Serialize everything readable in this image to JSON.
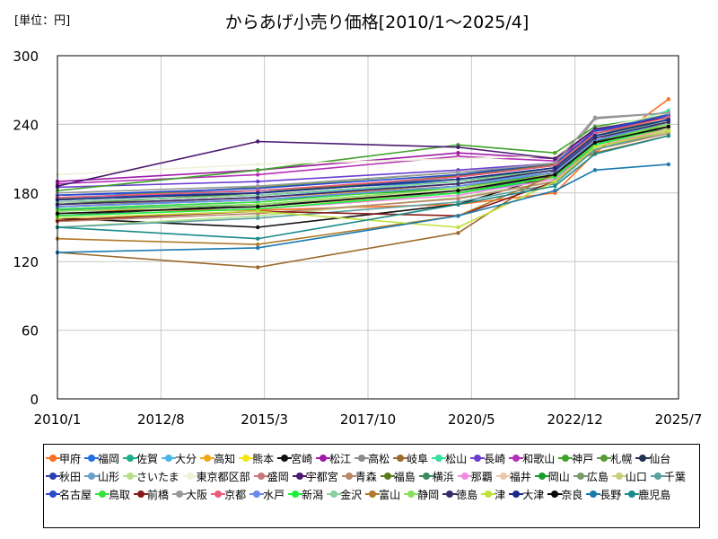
{
  "unit_label": "[単位：円]",
  "chart_data": {
    "type": "line",
    "title": "からあげ小売り価格[2010/1～2025/4]",
    "xlabel": "",
    "ylabel": "",
    "ylim": [
      0,
      300
    ],
    "yticks": [
      0,
      60,
      120,
      180,
      240,
      300
    ],
    "xlim": [
      "2010-01",
      "2025-07"
    ],
    "xticks": [
      "2010/1",
      "2012/8",
      "2015/3",
      "2017/10",
      "2020/5",
      "2022/12",
      "2025/7"
    ],
    "grid": true,
    "legend_position": "bottom",
    "series": [
      {
        "name": "甲府",
        "color": "#ff6d1f",
        "x": [
          "2010-01",
          "2015-01",
          "2020-01",
          "2022-06",
          "2023-06",
          "2025-04"
        ],
        "y": [
          165,
          165,
          170,
          180,
          215,
          262
        ]
      },
      {
        "name": "福岡",
        "color": "#1e6ee6",
        "x": [
          "2010-01",
          "2015-01",
          "2020-01",
          "2022-06",
          "2023-06",
          "2025-04"
        ],
        "y": [
          178,
          182,
          190,
          200,
          225,
          250
        ]
      },
      {
        "name": "佐賀",
        "color": "#1fae8c",
        "x": [
          "2010-01",
          "2015-01",
          "2020-01",
          "2022-06",
          "2023-06",
          "2025-04"
        ],
        "y": [
          165,
          170,
          180,
          192,
          222,
          245
        ]
      },
      {
        "name": "大分",
        "color": "#49b6ea",
        "x": [
          "2010-01",
          "2015-01",
          "2020-01",
          "2022-06",
          "2023-06",
          "2025-04"
        ],
        "y": [
          172,
          178,
          188,
          198,
          228,
          248
        ]
      },
      {
        "name": "高知",
        "color": "#f0a81a",
        "x": [
          "2010-01",
          "2015-01",
          "2020-01",
          "2022-06",
          "2023-06",
          "2025-04"
        ],
        "y": [
          170,
          176,
          186,
          196,
          226,
          242
        ]
      },
      {
        "name": "熊本",
        "color": "#f3e614",
        "x": [
          "2010-01",
          "2015-01",
          "2020-01",
          "2022-06",
          "2023-06",
          "2025-04"
        ],
        "y": [
          162,
          168,
          182,
          194,
          224,
          240
        ]
      },
      {
        "name": "宮崎",
        "color": "#111111",
        "x": [
          "2010-01",
          "2015-01",
          "2020-01",
          "2022-06",
          "2023-06",
          "2025-04"
        ],
        "y": [
          158,
          150,
          170,
          196,
          225,
          236
        ]
      },
      {
        "name": "松江",
        "color": "#a01aa6",
        "x": [
          "2010-01",
          "2015-01",
          "2020-01",
          "2022-06",
          "2023-06",
          "2025-04"
        ],
        "y": [
          190,
          200,
          215,
          210,
          235,
          250
        ]
      },
      {
        "name": "高松",
        "color": "#8c8c8c",
        "x": [
          "2010-01",
          "2015-01",
          "2020-01",
          "2022-06",
          "2023-06",
          "2025-04"
        ],
        "y": [
          168,
          176,
          188,
          200,
          245,
          250
        ]
      },
      {
        "name": "岐阜",
        "color": "#9c6a2c",
        "x": [
          "2010-01",
          "2015-01",
          "2020-01",
          "2022-06",
          "2023-06",
          "2025-04"
        ],
        "y": [
          128,
          115,
          145,
          200,
          215,
          230
        ]
      },
      {
        "name": "松山",
        "color": "#38e0a0",
        "x": [
          "2010-01",
          "2015-01",
          "2020-01",
          "2022-06",
          "2023-06",
          "2025-04"
        ],
        "y": [
          175,
          182,
          192,
          202,
          232,
          252
        ]
      },
      {
        "name": "長崎",
        "color": "#6a3fd0",
        "x": [
          "2010-01",
          "2015-01",
          "2020-01",
          "2022-06",
          "2023-06",
          "2025-04"
        ],
        "y": [
          185,
          190,
          200,
          206,
          232,
          248
        ]
      },
      {
        "name": "和歌山",
        "color": "#b52fb8",
        "x": [
          "2010-01",
          "2015-01",
          "2020-01",
          "2022-06",
          "2023-06",
          "2025-04"
        ],
        "y": [
          188,
          196,
          212,
          208,
          236,
          246
        ]
      },
      {
        "name": "神戸",
        "color": "#3ea12a",
        "x": [
          "2010-01",
          "2015-01",
          "2020-01",
          "2022-06",
          "2023-06",
          "2025-04"
        ],
        "y": [
          182,
          200,
          222,
          215,
          238,
          248
        ]
      },
      {
        "name": "札幌",
        "color": "#5a9a3a",
        "x": [
          "2010-01",
          "2015-01",
          "2020-01",
          "2022-06",
          "2023-06",
          "2025-04"
        ],
        "y": [
          175,
          185,
          198,
          205,
          230,
          244
        ]
      },
      {
        "name": "仙台",
        "color": "#223355",
        "x": [
          "2010-01",
          "2015-01",
          "2020-01",
          "2022-06",
          "2023-06",
          "2025-04"
        ],
        "y": [
          160,
          170,
          180,
          196,
          226,
          238
        ]
      },
      {
        "name": "秋田",
        "color": "#2d3fb0",
        "x": [
          "2010-01",
          "2015-01",
          "2020-01",
          "2022-06",
          "2023-06",
          "2025-04"
        ],
        "y": [
          176,
          180,
          194,
          204,
          234,
          246
        ]
      },
      {
        "name": "山形",
        "color": "#6aa0c8",
        "x": [
          "2010-01",
          "2015-01",
          "2020-01",
          "2022-06",
          "2023-06",
          "2025-04"
        ],
        "y": [
          166,
          172,
          186,
          198,
          228,
          242
        ]
      },
      {
        "name": "さいたま",
        "color": "#b8e08c",
        "x": [
          "2010-01",
          "2015-01",
          "2020-01",
          "2022-06",
          "2023-06",
          "2025-04"
        ],
        "y": [
          150,
          160,
          176,
          190,
          220,
          236
        ]
      },
      {
        "name": "東京都区部",
        "color": "#f0f0d8",
        "x": [
          "2010-01",
          "2015-01",
          "2020-01",
          "2022-06",
          "2023-06",
          "2025-04"
        ],
        "y": [
          196,
          205,
          210,
          212,
          236,
          250
        ]
      },
      {
        "name": "盛岡",
        "color": "#c87878",
        "x": [
          "2010-01",
          "2015-01",
          "2020-01",
          "2022-06",
          "2023-06",
          "2025-04"
        ],
        "y": [
          170,
          176,
          188,
          200,
          228,
          240
        ]
      },
      {
        "name": "宇都宮",
        "color": "#4a1a70",
        "x": [
          "2010-01",
          "2015-01",
          "2020-01",
          "2022-06",
          "2023-06",
          "2025-04"
        ],
        "y": [
          186,
          225,
          220,
          210,
          236,
          246
        ]
      },
      {
        "name": "青森",
        "color": "#b8886a",
        "x": [
          "2010-01",
          "2015-01",
          "2020-01",
          "2022-06",
          "2023-06",
          "2025-04"
        ],
        "y": [
          155,
          162,
          175,
          190,
          218,
          232
        ]
      },
      {
        "name": "福島",
        "color": "#5a7a1a",
        "x": [
          "2010-01",
          "2015-01",
          "2020-01",
          "2022-06",
          "2023-06",
          "2025-04"
        ],
        "y": [
          170,
          180,
          195,
          205,
          232,
          244
        ]
      },
      {
        "name": "横浜",
        "color": "#3a8a5a",
        "x": [
          "2010-01",
          "2015-01",
          "2020-01",
          "2022-06",
          "2023-06",
          "2025-04"
        ],
        "y": [
          172,
          178,
          190,
          202,
          230,
          242
        ]
      },
      {
        "name": "那覇",
        "color": "#f08ae0",
        "x": [
          "2010-01",
          "2015-01",
          "2020-01",
          "2022-06",
          "2023-06",
          "2025-04"
        ],
        "y": [
          160,
          166,
          178,
          192,
          220,
          236
        ]
      },
      {
        "name": "福井",
        "color": "#e8c8a8",
        "x": [
          "2010-01",
          "2015-01",
          "2020-01",
          "2022-06",
          "2023-06",
          "2025-04"
        ],
        "y": [
          164,
          170,
          182,
          196,
          224,
          238
        ]
      },
      {
        "name": "岡山",
        "color": "#1a9a2a",
        "x": [
          "2010-01",
          "2015-01",
          "2020-01",
          "2022-06",
          "2023-06",
          "2025-04"
        ],
        "y": [
          168,
          174,
          184,
          198,
          226,
          240
        ]
      },
      {
        "name": "広島",
        "color": "#7a9a6a",
        "x": [
          "2010-01",
          "2015-01",
          "2020-01",
          "2022-06",
          "2023-06",
          "2025-04"
        ],
        "y": [
          174,
          180,
          192,
          202,
          230,
          244
        ]
      },
      {
        "name": "山口",
        "color": "#c8d07a",
        "x": [
          "2010-01",
          "2015-01",
          "2020-01",
          "2022-06",
          "2023-06",
          "2025-04"
        ],
        "y": [
          162,
          168,
          180,
          194,
          222,
          236
        ]
      },
      {
        "name": "千葉",
        "color": "#5aa0a0",
        "x": [
          "2010-01",
          "2015-01",
          "2020-01",
          "2022-06",
          "2023-06",
          "2025-04"
        ],
        "y": [
          150,
          158,
          172,
          188,
          218,
          234
        ]
      },
      {
        "name": "名古屋",
        "color": "#2a4ad0",
        "x": [
          "2010-01",
          "2015-01",
          "2020-01",
          "2022-06",
          "2023-06",
          "2025-04"
        ],
        "y": [
          178,
          184,
          196,
          206,
          234,
          248
        ]
      },
      {
        "name": "鳥取",
        "color": "#3ae03a",
        "x": [
          "2010-01",
          "2015-01",
          "2020-01",
          "2022-06",
          "2023-06",
          "2025-04"
        ],
        "y": [
          166,
          172,
          186,
          198,
          226,
          240
        ]
      },
      {
        "name": "前橋",
        "color": "#8a1a1a",
        "x": [
          "2010-01",
          "2015-01",
          "2020-01",
          "2022-06",
          "2023-06",
          "2025-04"
        ],
        "y": [
          156,
          164,
          160,
          190,
          220,
          234
        ]
      },
      {
        "name": "大阪",
        "color": "#9a9a9a",
        "x": [
          "2010-01",
          "2015-01",
          "2020-01",
          "2022-06",
          "2023-06",
          "2025-04"
        ],
        "y": [
          180,
          186,
          198,
          206,
          246,
          250
        ]
      },
      {
        "name": "京都",
        "color": "#f05a7a",
        "x": [
          "2010-01",
          "2015-01",
          "2020-01",
          "2022-06",
          "2023-06",
          "2025-04"
        ],
        "y": [
          176,
          182,
          194,
          204,
          232,
          246
        ]
      },
      {
        "name": "水戸",
        "color": "#6a8af0",
        "x": [
          "2010-01",
          "2015-01",
          "2020-01",
          "2022-06",
          "2023-06",
          "2025-04"
        ],
        "y": [
          168,
          174,
          186,
          198,
          226,
          242
        ]
      },
      {
        "name": "新潟",
        "color": "#1af03a",
        "x": [
          "2010-01",
          "2015-01",
          "2020-01",
          "2022-06",
          "2023-06",
          "2025-04"
        ],
        "y": [
          160,
          166,
          180,
          194,
          222,
          238
        ]
      },
      {
        "name": "金沢",
        "color": "#8ad0a0",
        "x": [
          "2010-01",
          "2015-01",
          "2020-01",
          "2022-06",
          "2023-06",
          "2025-04"
        ],
        "y": [
          172,
          178,
          190,
          200,
          228,
          244
        ]
      },
      {
        "name": "富山",
        "color": "#b07a2a",
        "x": [
          "2010-01",
          "2015-01",
          "2020-01",
          "2022-06",
          "2023-06",
          "2025-04"
        ],
        "y": [
          140,
          135,
          160,
          196,
          224,
          238
        ]
      },
      {
        "name": "静岡",
        "color": "#8ae05a",
        "x": [
          "2010-01",
          "2015-01",
          "2020-01",
          "2022-06",
          "2023-06",
          "2025-04"
        ],
        "y": [
          164,
          170,
          184,
          196,
          224,
          240
        ]
      },
      {
        "name": "徳島",
        "color": "#3a2a6a",
        "x": [
          "2010-01",
          "2015-01",
          "2020-01",
          "2022-06",
          "2023-06",
          "2025-04"
        ],
        "y": [
          170,
          176,
          188,
          200,
          228,
          242
        ]
      },
      {
        "name": "津",
        "color": "#c0e03a",
        "x": [
          "2010-01",
          "2015-01",
          "2020-01",
          "2022-06",
          "2023-06",
          "2025-04"
        ],
        "y": [
          158,
          164,
          150,
          190,
          220,
          234
        ]
      },
      {
        "name": "大津",
        "color": "#1a2a8a",
        "x": [
          "2010-01",
          "2015-01",
          "2020-01",
          "2022-06",
          "2023-06",
          "2025-04"
        ],
        "y": [
          174,
          180,
          192,
          202,
          230,
          244
        ]
      },
      {
        "name": "奈良",
        "color": "#0a0a0a",
        "x": [
          "2010-01",
          "2015-01",
          "2020-01",
          "2022-06",
          "2023-06",
          "2025-04"
        ],
        "y": [
          162,
          168,
          182,
          196,
          224,
          238
        ]
      },
      {
        "name": "長野",
        "color": "#1a7ab0",
        "x": [
          "2010-01",
          "2015-01",
          "2020-01",
          "2022-06",
          "2023-06",
          "2025-04"
        ],
        "y": [
          128,
          132,
          160,
          182,
          200,
          205
        ]
      },
      {
        "name": "鹿児島",
        "color": "#1a8a8a",
        "x": [
          "2010-01",
          "2015-01",
          "2020-01",
          "2022-06",
          "2023-06",
          "2025-04"
        ],
        "y": [
          150,
          140,
          170,
          186,
          214,
          230
        ]
      }
    ]
  }
}
